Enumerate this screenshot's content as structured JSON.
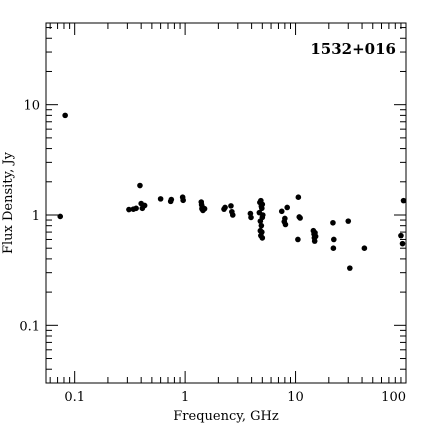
{
  "chart_data": {
    "type": "scatter",
    "title": "1532+016",
    "xlabel": "Frequency, GHz",
    "ylabel": "Flux Density, Jy",
    "x_scale": "log",
    "y_scale": "log",
    "xlim": [
      0.055,
      100
    ],
    "ylim": [
      0.03,
      55
    ],
    "x_ticks": [
      {
        "value": 0.1,
        "label": "0.1"
      },
      {
        "value": 1,
        "label": "1"
      },
      {
        "value": 10,
        "label": "10"
      },
      {
        "value": 100,
        "label": "100"
      }
    ],
    "y_ticks": [
      {
        "value": 0.1,
        "label": "0.1"
      },
      {
        "value": 1,
        "label": "1"
      },
      {
        "value": 10,
        "label": "10"
      }
    ],
    "series": [
      {
        "points": [
          [
            0.074,
            0.97
          ],
          [
            0.082,
            8.0
          ],
          [
            0.31,
            1.12
          ],
          [
            0.34,
            1.13
          ],
          [
            0.36,
            1.15
          ],
          [
            0.39,
            1.85
          ],
          [
            0.4,
            1.27
          ],
          [
            0.41,
            1.15
          ],
          [
            0.43,
            1.22
          ],
          [
            0.6,
            1.4
          ],
          [
            0.74,
            1.33
          ],
          [
            0.75,
            1.38
          ],
          [
            0.95,
            1.45
          ],
          [
            0.96,
            1.36
          ],
          [
            1.4,
            1.31
          ],
          [
            1.41,
            1.24
          ],
          [
            1.42,
            1.14
          ],
          [
            1.43,
            1.18
          ],
          [
            1.45,
            1.1
          ],
          [
            1.5,
            1.14
          ],
          [
            2.25,
            1.13
          ],
          [
            2.3,
            1.17
          ],
          [
            2.6,
            1.21
          ],
          [
            2.65,
            1.07
          ],
          [
            2.7,
            1.0
          ],
          [
            3.9,
            1.03
          ],
          [
            3.95,
            0.95
          ],
          [
            4.7,
            1.05
          ],
          [
            4.75,
            1.3
          ],
          [
            4.8,
            0.88
          ],
          [
            4.8,
            0.72
          ],
          [
            4.85,
            1.35
          ],
          [
            4.85,
            0.65
          ],
          [
            4.9,
            1.2
          ],
          [
            4.9,
            0.8
          ],
          [
            4.95,
            1.15
          ],
          [
            4.95,
            0.7
          ],
          [
            5.0,
            0.95
          ],
          [
            5.0,
            0.62
          ],
          [
            5.0,
            1.25
          ],
          [
            5.05,
            1.0
          ],
          [
            7.5,
            1.08
          ],
          [
            7.9,
            0.87
          ],
          [
            8.0,
            0.93
          ],
          [
            8.1,
            0.82
          ],
          [
            8.4,
            1.17
          ],
          [
            10.5,
            0.6
          ],
          [
            10.6,
            1.45
          ],
          [
            10.8,
            0.96
          ],
          [
            11.0,
            0.94
          ],
          [
            14.5,
            0.72
          ],
          [
            14.7,
            0.67
          ],
          [
            14.8,
            0.62
          ],
          [
            14.9,
            0.58
          ],
          [
            15.0,
            0.69
          ],
          [
            15.2,
            0.64
          ],
          [
            21.8,
            0.85
          ],
          [
            22.0,
            0.5
          ],
          [
            22.2,
            0.6
          ],
          [
            30.0,
            0.88
          ],
          [
            31.0,
            0.33
          ],
          [
            42.0,
            0.5
          ],
          [
            90.0,
            0.65
          ],
          [
            93.0,
            0.55
          ],
          [
            95.0,
            1.35
          ]
        ]
      }
    ],
    "grid": false,
    "legend": "none"
  }
}
